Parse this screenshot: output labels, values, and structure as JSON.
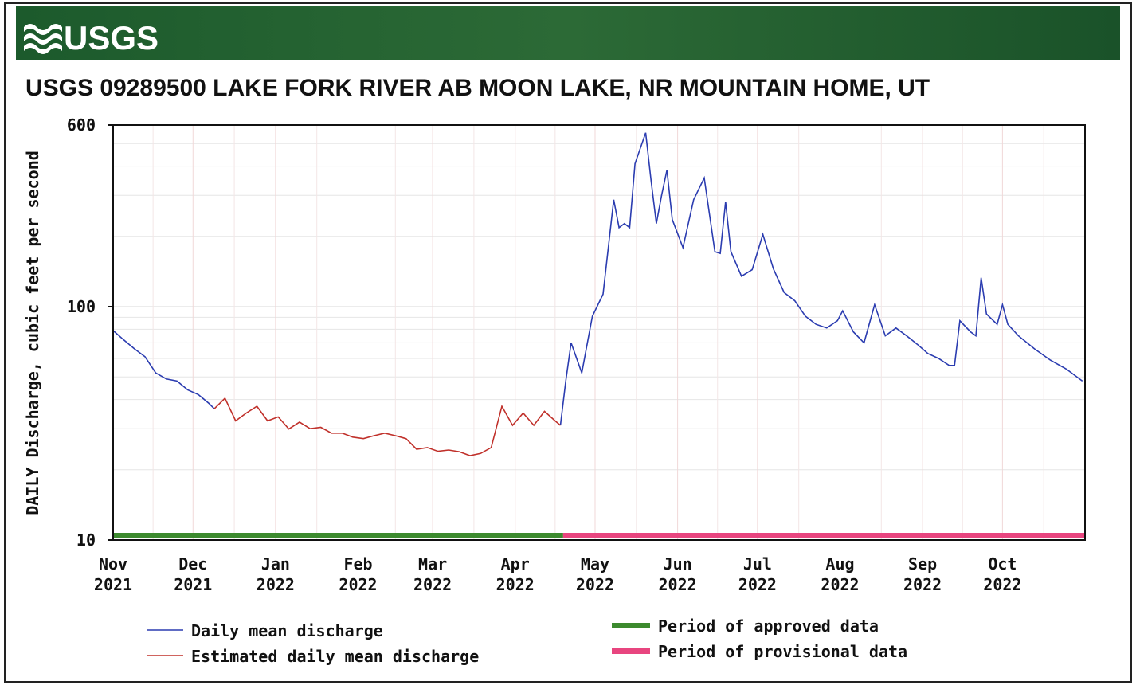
{
  "logo": "USGS",
  "chart_data": {
    "type": "line",
    "title": "USGS 09289500 LAKE FORK RIVER AB MOON LAKE, NR MOUNTAIN HOME, UT",
    "y_label": "DAILY Discharge, cubic feet per second",
    "log_y": true,
    "grid": true,
    "x": [
      0,
      4,
      8,
      12,
      16,
      20,
      24,
      28,
      32,
      36,
      38,
      42,
      46,
      50,
      54,
      58,
      62,
      66,
      70,
      74,
      78,
      82,
      86,
      90,
      94,
      98,
      102,
      106,
      110,
      114,
      118,
      122,
      126,
      130,
      134,
      138,
      142,
      146,
      150,
      154,
      158,
      162,
      166,
      168,
      170,
      172,
      176,
      180,
      184,
      188,
      190,
      192,
      194,
      196,
      200,
      202,
      204,
      206,
      208,
      210,
      214,
      218,
      222,
      226,
      228,
      230,
      232,
      236,
      240,
      244,
      248,
      252,
      256,
      260,
      264,
      268,
      272,
      274,
      278,
      282,
      286,
      290,
      294,
      298,
      302,
      306,
      310,
      314,
      316,
      318,
      322,
      324,
      326,
      328,
      332,
      334,
      336,
      340,
      346,
      352,
      358,
      364
    ],
    "xlim": [
      0,
      365
    ],
    "xticks": [
      {
        "value": 0,
        "label": "Nov\n2021"
      },
      {
        "value": 30,
        "label": "Dec\n2021"
      },
      {
        "value": 61,
        "label": "Jan\n2022"
      },
      {
        "value": 92,
        "label": "Feb\n2022"
      },
      {
        "value": 120,
        "label": "Mar\n2022"
      },
      {
        "value": 151,
        "label": "Apr\n2022"
      },
      {
        "value": 181,
        "label": "May\n2022"
      },
      {
        "value": 212,
        "label": "Jun\n2022"
      },
      {
        "value": 242,
        "label": "Jul\n2022"
      },
      {
        "value": 273,
        "label": "Aug\n2022"
      },
      {
        "value": 304,
        "label": "Sep\n2022"
      },
      {
        "value": 334,
        "label": "Oct\n2022"
      }
    ],
    "ylim": [
      10,
      600
    ],
    "yticks": [
      10,
      100,
      600
    ],
    "series": [
      {
        "name": "Daily mean discharge",
        "color": "#2b3cb0",
        "values": [
          79,
          72,
          66,
          61,
          52,
          49,
          48,
          44,
          42,
          38.5,
          36.5,
          null,
          null,
          null,
          null,
          null,
          null,
          null,
          null,
          null,
          null,
          null,
          null,
          null,
          null,
          null,
          null,
          null,
          null,
          null,
          null,
          null,
          null,
          null,
          null,
          null,
          null,
          null,
          null,
          null,
          null,
          null,
          null,
          31,
          48,
          70,
          52,
          91,
          113,
          287,
          218,
          227,
          218,
          410,
          556,
          349,
          227,
          300,
          385,
          236,
          179,
          287,
          356,
          172,
          169,
          281,
          172,
          135,
          144,
          204,
          145,
          115,
          106,
          91,
          84,
          81,
          87,
          96,
          78,
          70,
          102,
          75,
          81,
          75,
          69,
          63,
          60,
          56,
          56,
          87,
          78,
          75,
          133,
          93,
          84,
          102,
          84,
          75,
          66,
          59,
          54,
          48
        ]
      },
      {
        "name": "Estimated daily mean discharge",
        "color": "#c0302a",
        "values": [
          null,
          null,
          null,
          null,
          null,
          null,
          null,
          null,
          null,
          null,
          36.5,
          40.5,
          32.4,
          35,
          37.4,
          32.4,
          33.7,
          29.9,
          32,
          30,
          30.4,
          28.7,
          28.7,
          27.6,
          27.2,
          28,
          28.7,
          28,
          27.2,
          24.5,
          24.9,
          24,
          24.3,
          23.9,
          23,
          23.5,
          24.9,
          37.4,
          31,
          35,
          31,
          35.6,
          32.4,
          31,
          null,
          null,
          null,
          null,
          null,
          null,
          null,
          null,
          null,
          null,
          null,
          null,
          null,
          null,
          null,
          null,
          null,
          null,
          null,
          null,
          null,
          null,
          null,
          null,
          null,
          null,
          null,
          null,
          null,
          null,
          null,
          null,
          null,
          null,
          null,
          null,
          null,
          null,
          null,
          null,
          null,
          null,
          null,
          null,
          null,
          null,
          null,
          null,
          null,
          null,
          null,
          null,
          null,
          null,
          null,
          null,
          null,
          null
        ]
      }
    ],
    "periods": [
      {
        "name": "Period of approved data",
        "color": "#3c8a2e",
        "start": 0,
        "end": 169
      },
      {
        "name": "Period of provisional data",
        "color": "#e8457f",
        "start": 169,
        "end": 365
      }
    ]
  }
}
